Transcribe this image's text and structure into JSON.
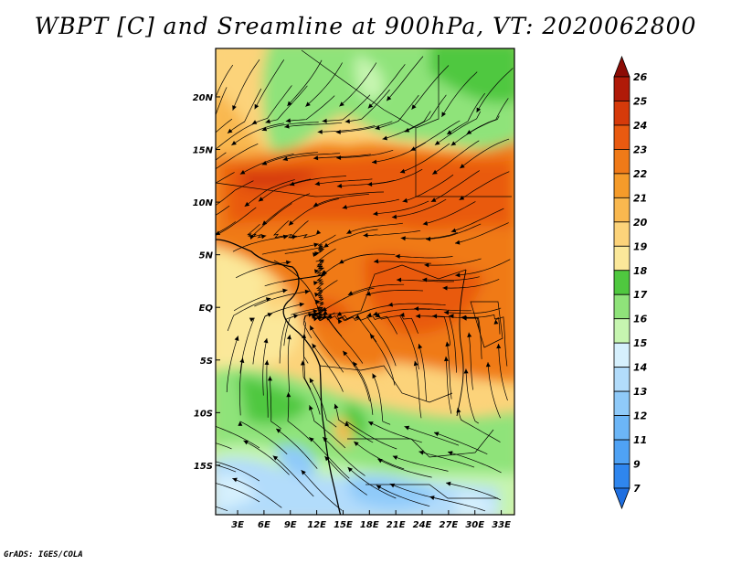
{
  "title": "WBPT [C] and Sreamline at 900hPa, VT: 2020062800",
  "credit": "GrADS: IGES/COLA",
  "map": {
    "lon_labels": [
      "3E",
      "6E",
      "9E",
      "12E",
      "15E",
      "18E",
      "21E",
      "24E",
      "27E",
      "30E",
      "33E"
    ],
    "lon_values": [
      3,
      6,
      9,
      12,
      15,
      18,
      21,
      24,
      27,
      30,
      33
    ],
    "lat_labels": [
      "20N",
      "15N",
      "10N",
      "5N",
      "EQ",
      "5S",
      "10S",
      "15S"
    ],
    "lat_values": [
      20,
      15,
      10,
      5,
      0,
      -5,
      -10,
      -15
    ],
    "lon_range": [
      0.5,
      34.5
    ],
    "lat_range": [
      -19.7,
      24.6
    ]
  },
  "colorbar": {
    "levels": [
      "7",
      "9",
      "11",
      "12",
      "13",
      "14",
      "15",
      "16",
      "17",
      "18",
      "19",
      "20",
      "21",
      "22",
      "23",
      "24",
      "25",
      "26"
    ],
    "colors": [
      "#1f6fe0",
      "#2f86ee",
      "#4fa2f4",
      "#6cb6f7",
      "#8fcaf9",
      "#b2dcfb",
      "#d6f0fd",
      "#c6f5b0",
      "#8fe37a",
      "#4fc83f",
      "#fbe89a",
      "#fcd37a",
      "#f9b84f",
      "#f59b2a",
      "#f07a18",
      "#e95a10",
      "#d63a0a",
      "#b01a08",
      "#8c0c05"
    ]
  }
}
